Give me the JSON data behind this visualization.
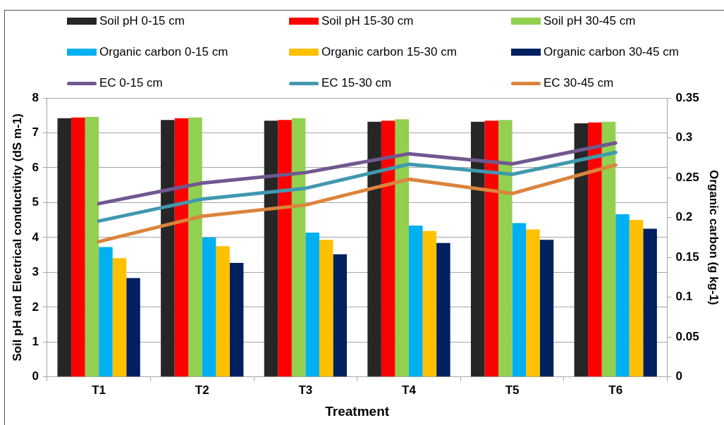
{
  "chart_data": {
    "type": "bar",
    "categories": [
      "T1",
      "T2",
      "T3",
      "T4",
      "T5",
      "T6"
    ],
    "xlabel": "Treatment",
    "ylabel": "Soil pH and Electrical conductivity (dS m-1)",
    "y2label": "Organic carbon (g kg-1)",
    "ylim": [
      0,
      8
    ],
    "yticks": [
      0,
      1,
      2,
      3,
      4,
      5,
      6,
      7,
      8
    ],
    "y2lim": [
      0,
      0.35
    ],
    "y2ticks": [
      0,
      0.05,
      0.1,
      0.15,
      0.2,
      0.25,
      0.3,
      0.35
    ],
    "grid": "y",
    "legend": "top",
    "series": [
      {
        "name": "Soil pH 0-15 cm",
        "color": "#262626",
        "values": [
          7.42,
          7.37,
          7.35,
          7.32,
          7.32,
          7.27
        ]
      },
      {
        "name": "Soil pH 15-30 cm",
        "color": "#ff0000",
        "values": [
          7.44,
          7.42,
          7.37,
          7.35,
          7.35,
          7.3
        ]
      },
      {
        "name": "Soil pH 30-45 cm",
        "color": "#92d050",
        "values": [
          7.46,
          7.44,
          7.42,
          7.39,
          7.37,
          7.32
        ]
      },
      {
        "name": "Organic carbon 0-15 cm",
        "axis": "y2",
        "color": "#00b0f0",
        "values": [
          0.163,
          0.175,
          0.181,
          0.19,
          0.193,
          0.204
        ]
      },
      {
        "name": "Organic carbon 15-30 cm",
        "axis": "y2",
        "color": "#ffc000",
        "values": [
          0.149,
          0.164,
          0.172,
          0.183,
          0.185,
          0.197
        ]
      },
      {
        "name": "Organic carbon 30-45 cm",
        "axis": "y2",
        "color": "#002060",
        "values": [
          0.124,
          0.143,
          0.154,
          0.168,
          0.172,
          0.186
        ]
      },
      {
        "name": "EC 0-15 cm",
        "type": "line",
        "color": "#71588f",
        "values": [
          4.97,
          5.56,
          5.86,
          6.4,
          6.11,
          6.71
        ]
      },
      {
        "name": "EC 15-30 cm",
        "type": "line",
        "color": "#4198af",
        "values": [
          4.47,
          5.1,
          5.41,
          6.1,
          5.81,
          6.44
        ]
      },
      {
        "name": "EC 30-45 cm",
        "type": "line",
        "color": "#db843d",
        "values": [
          3.88,
          4.61,
          4.93,
          5.67,
          5.26,
          6.08
        ]
      }
    ]
  }
}
